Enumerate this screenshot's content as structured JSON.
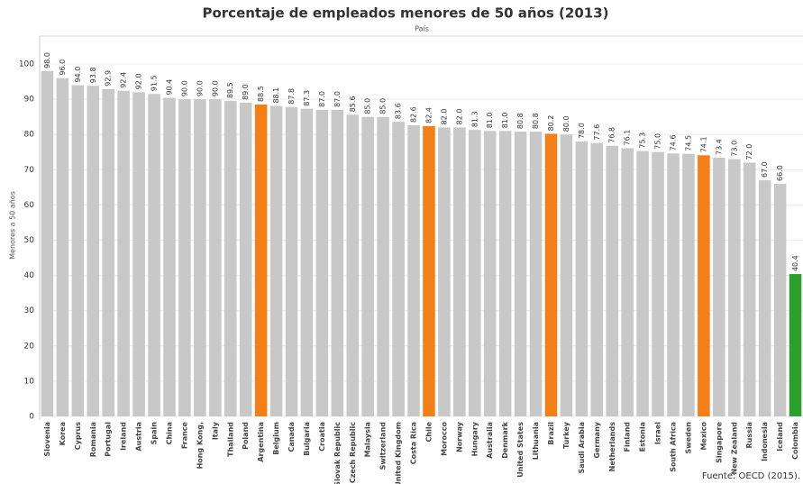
{
  "chart_data": {
    "type": "bar",
    "title": "Porcentaje de empleados menores de 50 años (2013)",
    "x_label": "País",
    "y_label": "Menores a 50 años",
    "source": "Fuente: OECD (2015).",
    "categories": [
      "Slovenia",
      "Korea",
      "Cyprus",
      "Romania",
      "Portugal",
      "Ireland",
      "Austria",
      "Spain",
      "China",
      "France",
      "Hong Kong,",
      "Italy",
      "Thailand",
      "Poland",
      "Argentina",
      "Belgium",
      "Canada",
      "Bulgaria",
      "Croatia",
      "Slovak Republic",
      "Czech Republic",
      "Malaysia",
      "Switzerland",
      "United Kingdom",
      "Costa Rica",
      "Chile",
      "Morocco",
      "Norway",
      "Hungary",
      "Australia",
      "Denmark",
      "United States",
      "Lithuania",
      "Brazil",
      "Turkey",
      "Saudi Arabia",
      "Germany",
      "Netherlands",
      "Finland",
      "Estonia",
      "Israel",
      "South Africa",
      "Sweden",
      "Mexico",
      "Singapore",
      "New Zealand",
      "Russia",
      "Indonesia",
      "Iceland",
      "Colombia"
    ],
    "values": [
      98.0,
      96.0,
      94.0,
      93.8,
      92.9,
      92.4,
      92.0,
      91.5,
      90.4,
      90.0,
      90.0,
      90.0,
      89.5,
      89.0,
      88.5,
      88.1,
      87.8,
      87.3,
      87.0,
      87.0,
      85.6,
      85.0,
      85.0,
      83.6,
      82.6,
      82.4,
      82.0,
      82.0,
      81.3,
      81.0,
      81.0,
      80.8,
      80.8,
      80.2,
      80.0,
      78.0,
      77.6,
      76.8,
      76.1,
      75.3,
      75.0,
      74.6,
      74.5,
      74.1,
      73.4,
      73.0,
      72.0,
      67.0,
      66.0,
      40.4
    ],
    "value_labels": [
      "98.0",
      "96.0",
      "94.0",
      "93.8",
      "92.9",
      "92.4",
      "92.0",
      "91.5",
      "90.4",
      "90.0",
      "90.0",
      "90.0",
      "89.5",
      "89.0",
      "88.5",
      "88.1",
      "87.8",
      "87.3",
      "87.0",
      "87.0",
      "85.6",
      "85.0",
      "85.0",
      "83.6",
      "82.6",
      "82.4",
      "82.0",
      "82.0",
      "81.3",
      "81.0",
      "81.0",
      "80.8",
      "80.8",
      "80.2",
      "80.0",
      "78.0",
      "77.6",
      "76.8",
      "76.1",
      "75.3",
      "75.0",
      "74.6",
      "74.5",
      "74.1",
      "73.4",
      "73.0",
      "72.0",
      "67.0",
      "66.0",
      "40.4"
    ],
    "colors": [
      "#c8c8c8",
      "#c8c8c8",
      "#c8c8c8",
      "#c8c8c8",
      "#c8c8c8",
      "#c8c8c8",
      "#c8c8c8",
      "#c8c8c8",
      "#c8c8c8",
      "#c8c8c8",
      "#c8c8c8",
      "#c8c8c8",
      "#c8c8c8",
      "#c8c8c8",
      "#f47f17",
      "#c8c8c8",
      "#c8c8c8",
      "#c8c8c8",
      "#c8c8c8",
      "#c8c8c8",
      "#c8c8c8",
      "#c8c8c8",
      "#c8c8c8",
      "#c8c8c8",
      "#c8c8c8",
      "#f47f17",
      "#c8c8c8",
      "#c8c8c8",
      "#c8c8c8",
      "#c8c8c8",
      "#c8c8c8",
      "#c8c8c8",
      "#c8c8c8",
      "#f47f17",
      "#c8c8c8",
      "#c8c8c8",
      "#c8c8c8",
      "#c8c8c8",
      "#c8c8c8",
      "#c8c8c8",
      "#c8c8c8",
      "#c8c8c8",
      "#c8c8c8",
      "#f47f17",
      "#c8c8c8",
      "#c8c8c8",
      "#c8c8c8",
      "#c8c8c8",
      "#c8c8c8",
      "#2ca02c"
    ],
    "ylim": [
      0,
      100
    ],
    "yticks": [
      0,
      10,
      20,
      30,
      40,
      50,
      60,
      70,
      80,
      90,
      100
    ],
    "grid": true
  }
}
